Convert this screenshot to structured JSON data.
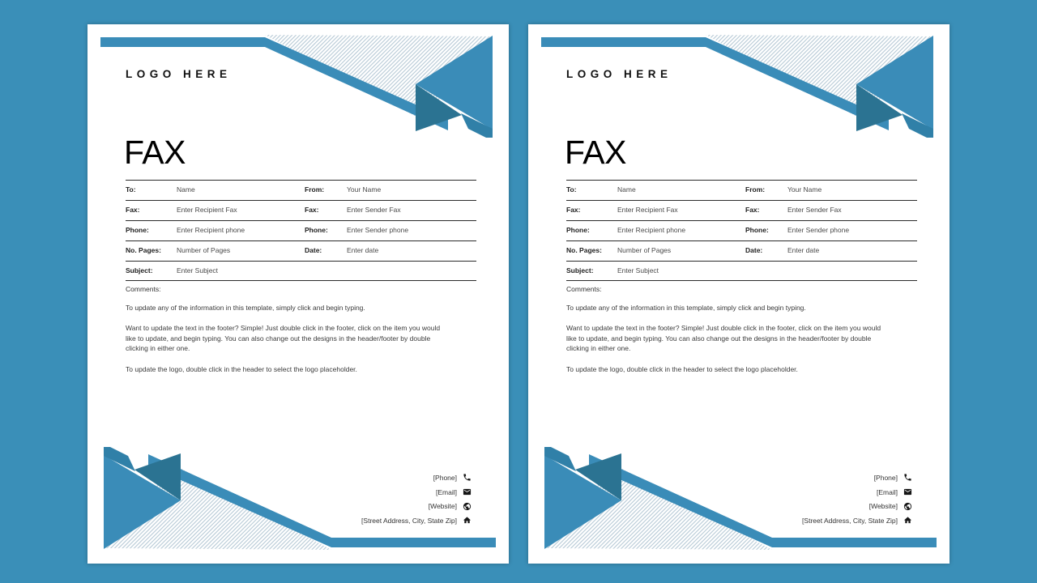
{
  "background_color": "#3a8fb8",
  "colors": {
    "accent": "#3a8cb8",
    "accent_dark": "#2b7392",
    "accent_mid": "#3080a8",
    "hatch_stripe": "#b5c8d5",
    "paper": "#ffffff"
  },
  "template": {
    "logo_text": "LOGO HERE",
    "doc_title": "FAX",
    "form": {
      "rows": [
        {
          "l1": "To:",
          "v1": "Name",
          "l2": "From:",
          "v2": "Your Name"
        },
        {
          "l1": "Fax:",
          "v1": "Enter Recipient Fax",
          "l2": "Fax:",
          "v2": "Enter Sender Fax"
        },
        {
          "l1": "Phone:",
          "v1": "Enter Recipient phone",
          "l2": "Phone:",
          "v2": "Enter Sender phone"
        },
        {
          "l1": "No. Pages:",
          "v1": "Number of Pages",
          "l2": "Date:",
          "v2": "Enter date"
        },
        {
          "l1": "Subject:",
          "v1": "Enter Subject"
        }
      ],
      "comments_label": "Comments:"
    },
    "instructions": [
      "To update any of the information in this template, simply click and begin typing.",
      "Want to update the text in the footer?  Simple!  Just double click in the footer, click on the item you would like to update, and begin typing.  You can also change out the designs in the header/footer by double clicking in either one.",
      "To update the logo, double click in the header to select the logo placeholder."
    ],
    "footer_contacts": [
      {
        "label": "[Phone]",
        "icon": "phone-icon"
      },
      {
        "label": "[Email]",
        "icon": "email-icon"
      },
      {
        "label": "[Website]",
        "icon": "website-icon"
      },
      {
        "label": "[Street Address, City, State Zip]",
        "icon": "home-icon"
      }
    ]
  }
}
